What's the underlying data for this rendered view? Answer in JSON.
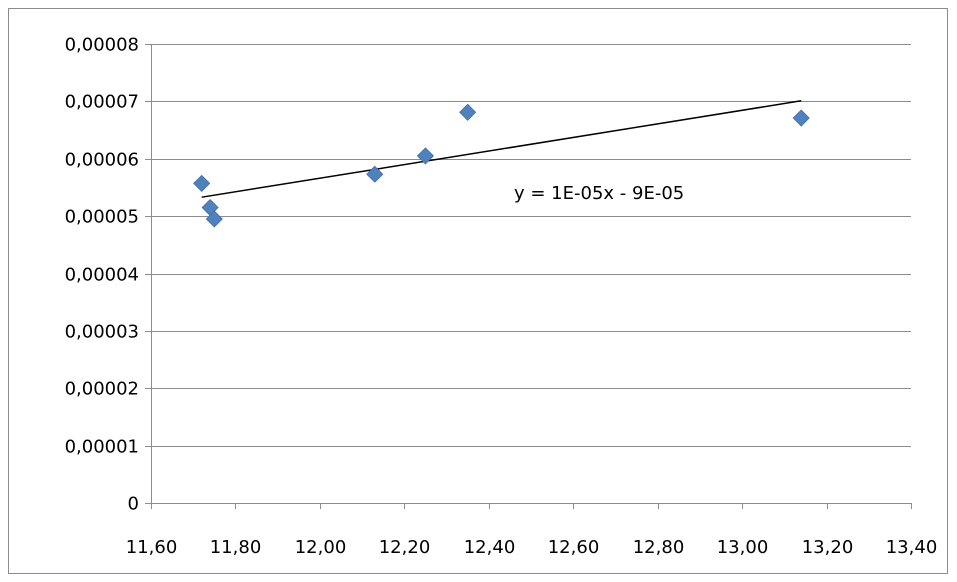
{
  "chart_data": {
    "type": "scatter",
    "title": "",
    "xlabel": "",
    "ylabel": "",
    "xlim": [
      11.6,
      13.4
    ],
    "ylim": [
      0,
      8e-05
    ],
    "x_ticks": [
      "11,60",
      "11,80",
      "12,00",
      "12,20",
      "12,40",
      "12,60",
      "12,80",
      "13,00",
      "13,20",
      "13,40"
    ],
    "x_tick_values": [
      11.6,
      11.8,
      12.0,
      12.2,
      12.4,
      12.6,
      12.8,
      13.0,
      13.2,
      13.4
    ],
    "y_ticks": [
      "0",
      "0,00001",
      "0,00002",
      "0,00003",
      "0,00004",
      "0,00005",
      "0,00006",
      "0,00007",
      "0,00008"
    ],
    "y_tick_values": [
      0,
      1e-05,
      2e-05,
      3e-05,
      4e-05,
      5e-05,
      6e-05,
      7e-05,
      8e-05
    ],
    "grid": "horizontal",
    "legend": "none",
    "series": [
      {
        "color": "#4F81BD",
        "marker": "diamond",
        "points": [
          {
            "x": 11.72,
            "y": 5.57e-05
          },
          {
            "x": 11.74,
            "y": 5.15e-05
          },
          {
            "x": 11.75,
            "y": 4.95e-05
          },
          {
            "x": 12.13,
            "y": 5.73e-05
          },
          {
            "x": 12.25,
            "y": 6.05e-05
          },
          {
            "x": 12.35,
            "y": 6.81e-05
          },
          {
            "x": 13.14,
            "y": 6.71e-05
          }
        ]
      }
    ],
    "trendline": {
      "color": "#000000",
      "x_range": [
        11.72,
        13.14
      ],
      "y_start": 5.33e-05,
      "y_end": 7.01e-05,
      "equation": "y = 1E-05x - 9E-05"
    }
  }
}
